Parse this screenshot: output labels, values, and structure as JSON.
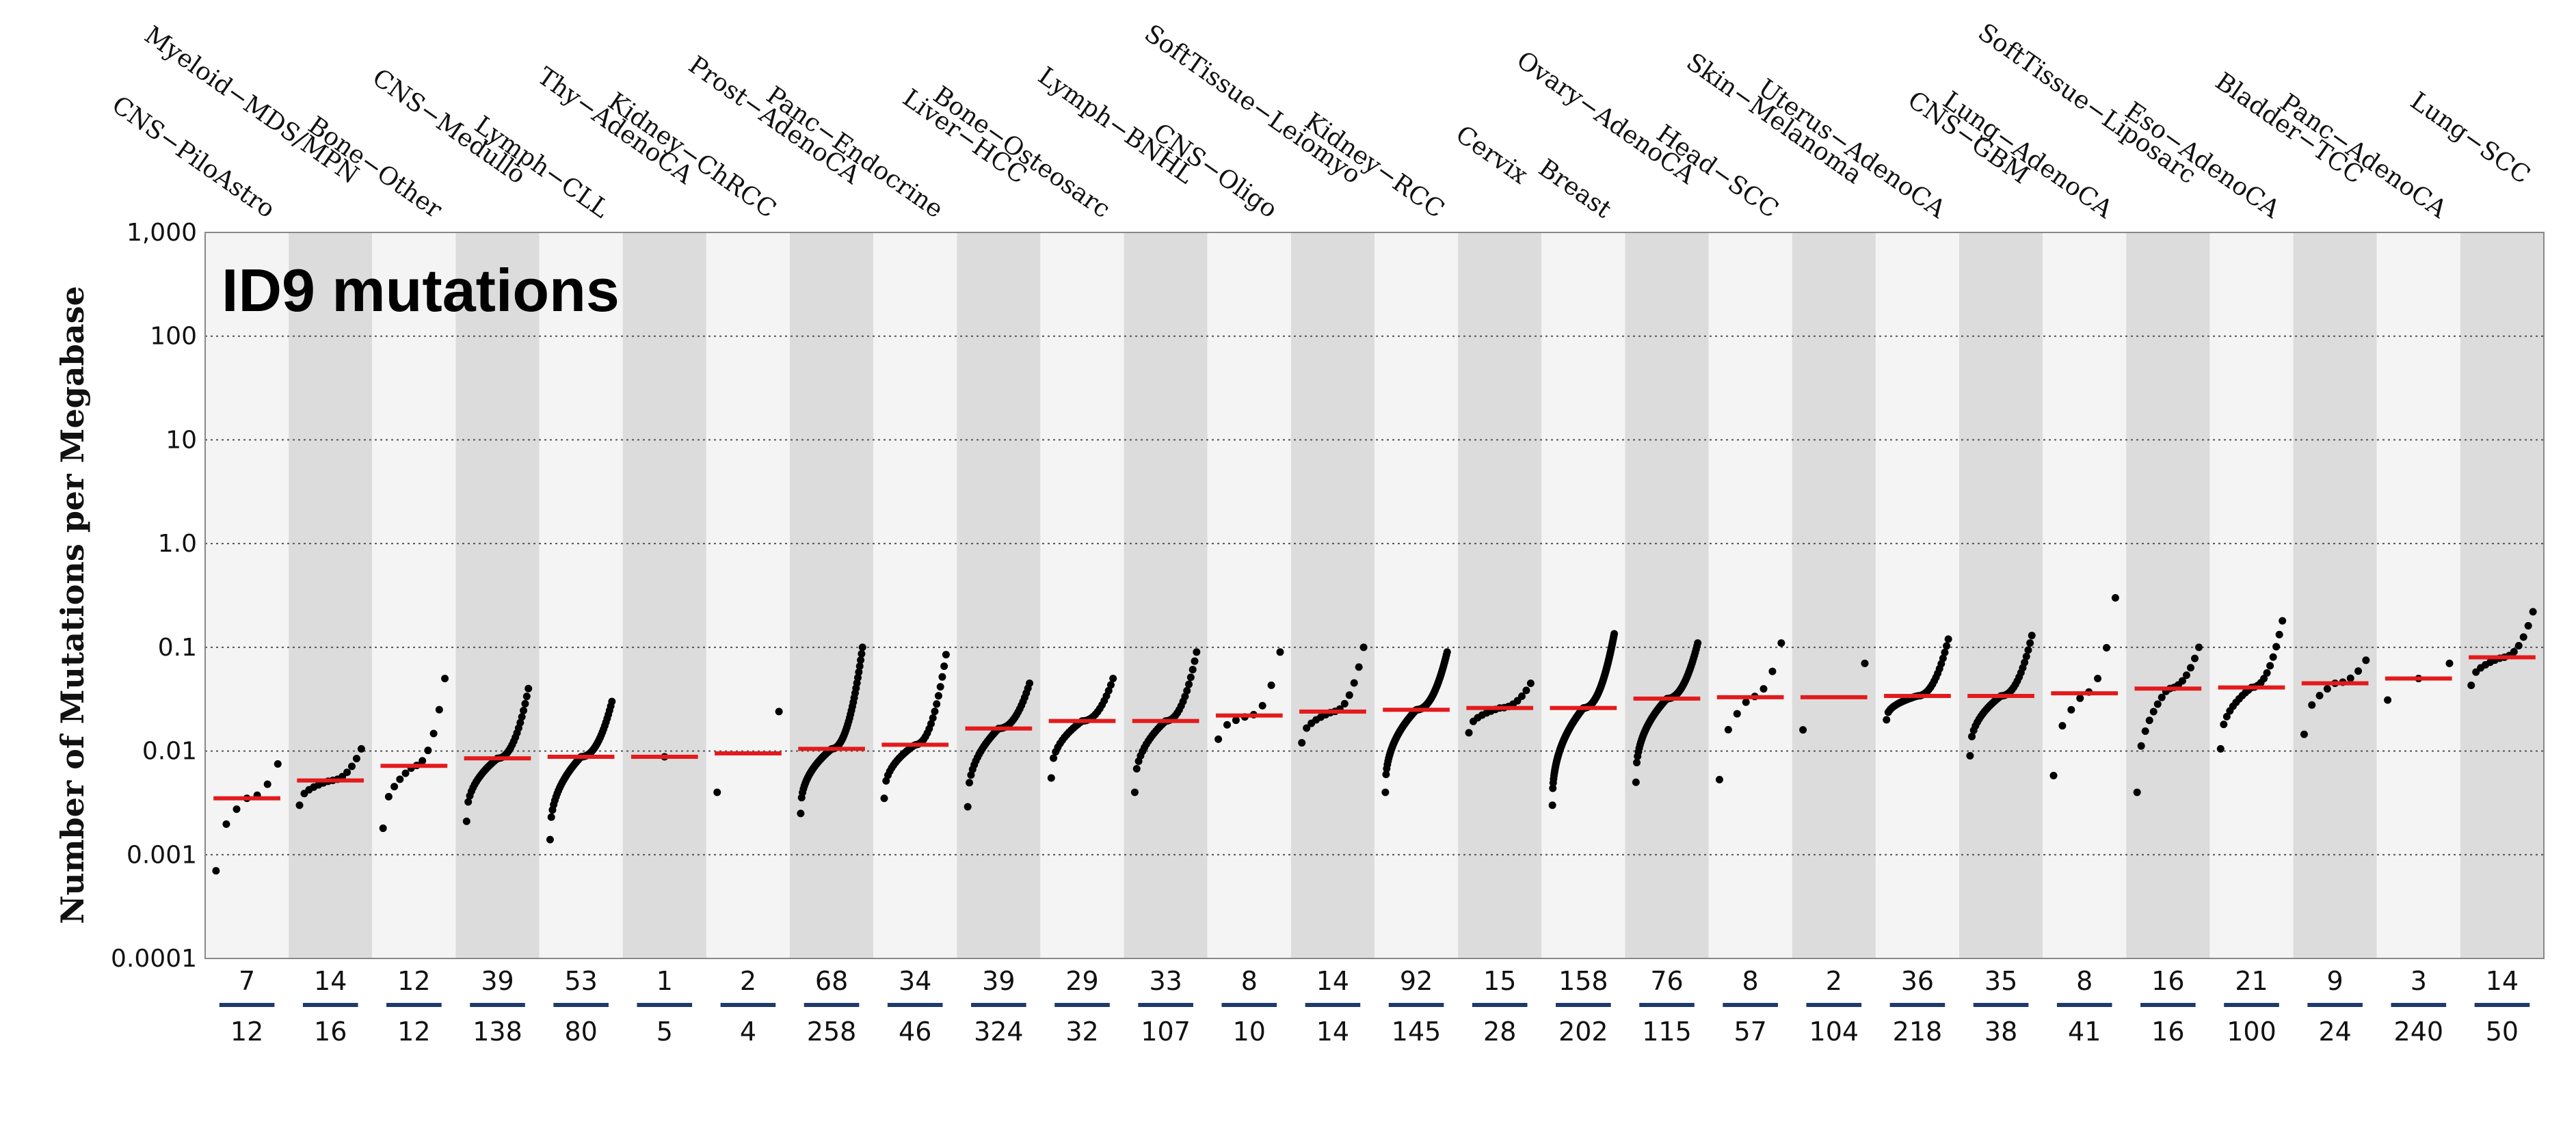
{
  "chart_data": {
    "type": "scatter",
    "title": "ID9 mutations",
    "ylabel": "Number of Mutations per Megabase",
    "yscale": "log",
    "ylim": [
      0.0001,
      1000
    ],
    "yticks": [
      "1,000",
      "100",
      "10",
      "1.0",
      "0.1",
      "0.01",
      "0.001",
      "0.0001"
    ],
    "grid": true,
    "colors": {
      "band_dark": "#dcdcdc",
      "band_light": "#f4f4f4",
      "median": "#e41a1c",
      "point": "#000000",
      "count_divider": "#1f3a6b"
    },
    "groups": [
      {
        "name": "CNS−PiloAstro",
        "n_with": "7",
        "n_total": "12",
        "median": 0.0035,
        "min": 0.0007,
        "max": 0.0075
      },
      {
        "name": "Myeloid−MDS/MPN",
        "n_with": "14",
        "n_total": "16",
        "median": 0.0052,
        "min": 0.003,
        "max": 0.0105
      },
      {
        "name": "Bone−Other",
        "n_with": "12",
        "n_total": "12",
        "median": 0.0072,
        "min": 0.0018,
        "max": 0.05
      },
      {
        "name": "CNS−Medullo",
        "n_with": "39",
        "n_total": "138",
        "median": 0.0085,
        "min": 0.0021,
        "max": 0.04
      },
      {
        "name": "Lymph−CLL",
        "n_with": "53",
        "n_total": "80",
        "median": 0.0088,
        "min": 0.0014,
        "max": 0.03
      },
      {
        "name": "Thy−AdenoCA",
        "n_with": "1",
        "n_total": "5",
        "median": 0.0088,
        "min": 0.0088,
        "max": 0.0088
      },
      {
        "name": "Kidney−ChRCC",
        "n_with": "2",
        "n_total": "4",
        "median": 0.0095,
        "min": 0.004,
        "max": 0.024
      },
      {
        "name": "Prost−AdenoCA",
        "n_with": "68",
        "n_total": "258",
        "median": 0.0105,
        "min": 0.0025,
        "max": 0.1
      },
      {
        "name": "Panc−Endocrine",
        "n_with": "34",
        "n_total": "46",
        "median": 0.0115,
        "min": 0.0035,
        "max": 0.085
      },
      {
        "name": "Liver−HCC",
        "n_with": "39",
        "n_total": "324",
        "median": 0.0165,
        "min": 0.0029,
        "max": 0.045
      },
      {
        "name": "Bone−Osteosarc",
        "n_with": "29",
        "n_total": "32",
        "median": 0.0195,
        "min": 0.0055,
        "max": 0.05
      },
      {
        "name": "Lymph−BNHL",
        "n_with": "33",
        "n_total": "107",
        "median": 0.0195,
        "min": 0.004,
        "max": 0.09
      },
      {
        "name": "CNS−Oligo",
        "n_with": "8",
        "n_total": "10",
        "median": 0.022,
        "min": 0.013,
        "max": 0.09
      },
      {
        "name": "SoftTissue−Leiomyo",
        "n_with": "14",
        "n_total": "14",
        "median": 0.024,
        "min": 0.012,
        "max": 0.1
      },
      {
        "name": "Kidney−RCC",
        "n_with": "92",
        "n_total": "145",
        "median": 0.025,
        "min": 0.004,
        "max": 0.09
      },
      {
        "name": "Cervix",
        "n_with": "15",
        "n_total": "28",
        "median": 0.026,
        "min": 0.015,
        "max": 0.045
      },
      {
        "name": "Breast",
        "n_with": "158",
        "n_total": "202",
        "median": 0.026,
        "min": 0.003,
        "max": 0.135
      },
      {
        "name": "Ovary−AdenoCA",
        "n_with": "76",
        "n_total": "115",
        "median": 0.032,
        "min": 0.005,
        "max": 0.11
      },
      {
        "name": "Head−SCC",
        "n_with": "8",
        "n_total": "57",
        "median": 0.033,
        "min": 0.0053,
        "max": 0.11
      },
      {
        "name": "Skin−Melanoma",
        "n_with": "2",
        "n_total": "104",
        "median": 0.033,
        "min": 0.016,
        "max": 0.07
      },
      {
        "name": "Uterus−AdenoCA",
        "n_with": "36",
        "n_total": "218",
        "median": 0.034,
        "min": 0.02,
        "max": 0.12
      },
      {
        "name": "CNS−GBM",
        "n_with": "35",
        "n_total": "38",
        "median": 0.034,
        "min": 0.009,
        "max": 0.13
      },
      {
        "name": "Lung−AdenoCA",
        "n_with": "8",
        "n_total": "41",
        "median": 0.036,
        "min": 0.0058,
        "max": 0.3
      },
      {
        "name": "SoftTissue−Liposarc",
        "n_with": "16",
        "n_total": "16",
        "median": 0.04,
        "min": 0.004,
        "max": 0.1
      },
      {
        "name": "Eso−AdenoCA",
        "n_with": "21",
        "n_total": "100",
        "median": 0.041,
        "min": 0.0105,
        "max": 0.18
      },
      {
        "name": "Bladder−TCC",
        "n_with": "9",
        "n_total": "24",
        "median": 0.045,
        "min": 0.0145,
        "max": 0.075
      },
      {
        "name": "Panc−AdenoCA",
        "n_with": "3",
        "n_total": "240",
        "median": 0.05,
        "min": 0.031,
        "max": 0.07
      },
      {
        "name": "Lung−SCC",
        "n_with": "14",
        "n_total": "50",
        "median": 0.08,
        "min": 0.043,
        "max": 0.22
      }
    ]
  }
}
